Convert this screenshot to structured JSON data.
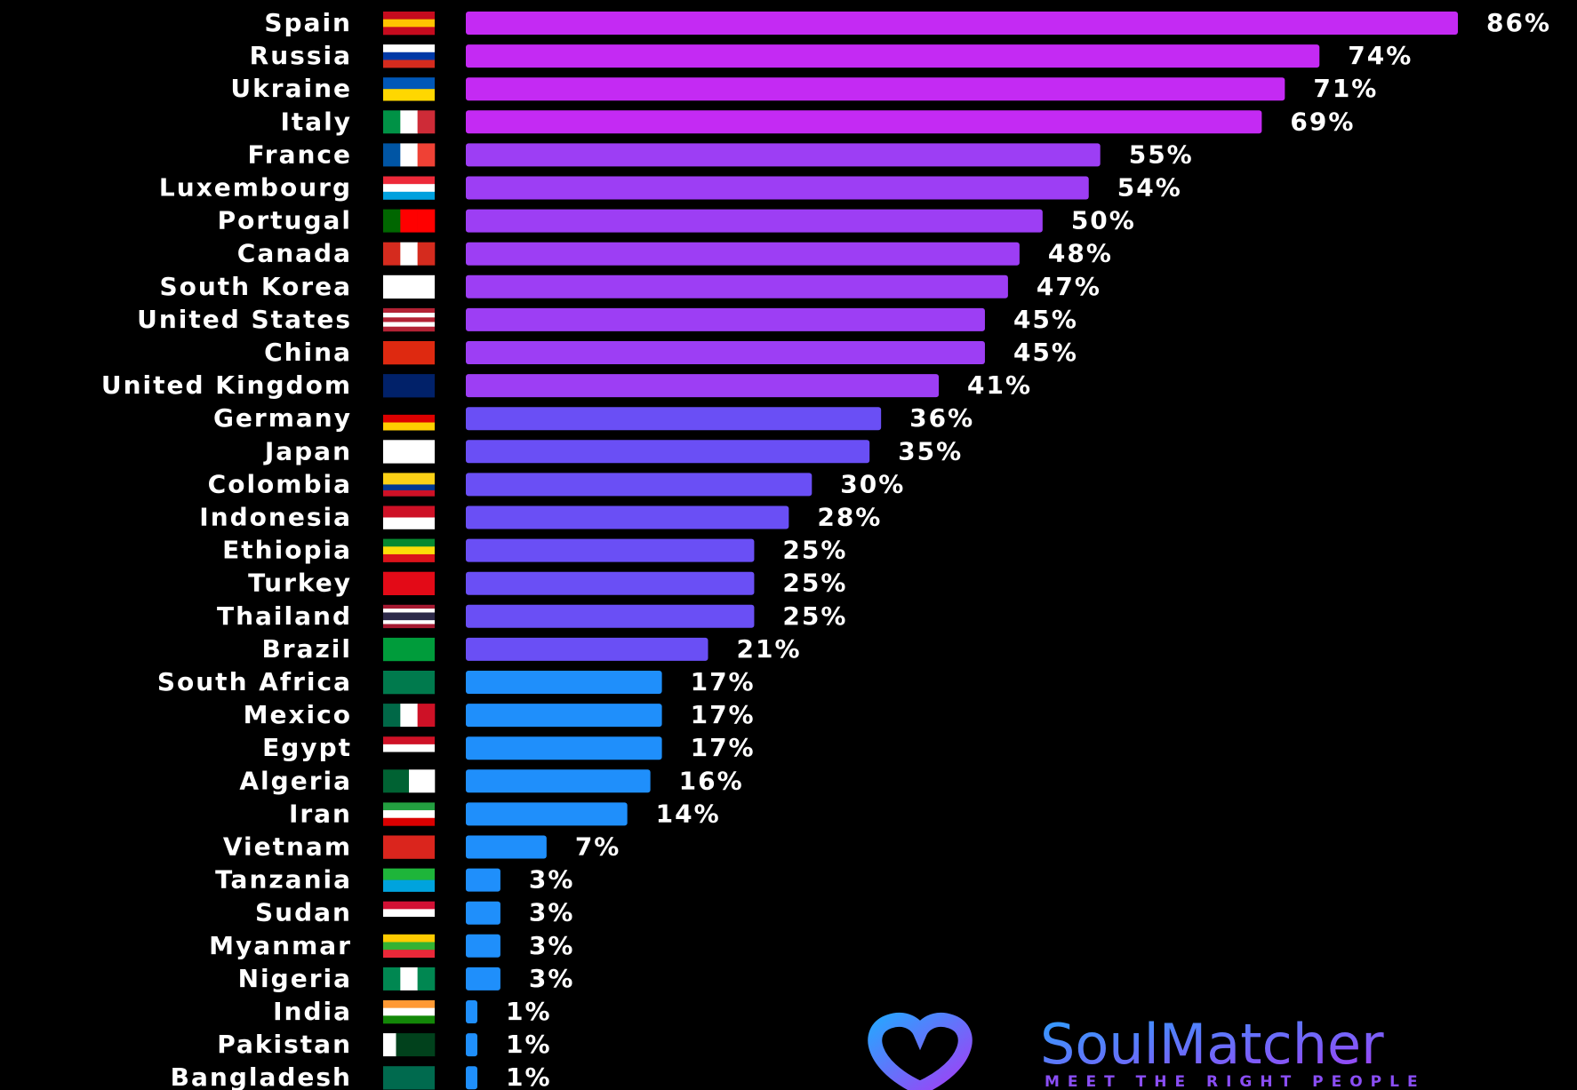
{
  "chart_data": {
    "type": "bar",
    "orientation": "horizontal",
    "categories": [
      "Spain",
      "Russia",
      "Ukraine",
      "Italy",
      "France",
      "Luxembourg",
      "Portugal",
      "Canada",
      "South Korea",
      "United States",
      "China",
      "United Kingdom",
      "Germany",
      "Japan",
      "Colombia",
      "Indonesia",
      "Ethiopia",
      "Turkey",
      "Thailand",
      "Brazil",
      "South Africa",
      "Mexico",
      "Egypt",
      "Algeria",
      "Iran",
      "Vietnam",
      "Tanzania",
      "Sudan",
      "Myanmar",
      "Nigeria",
      "India",
      "Pakistan",
      "Bangladesh"
    ],
    "values": [
      86,
      74,
      71,
      69,
      55,
      54,
      50,
      48,
      47,
      45,
      45,
      41,
      36,
      35,
      30,
      28,
      25,
      25,
      25,
      21,
      17,
      17,
      17,
      16,
      14,
      7,
      3,
      3,
      3,
      3,
      1,
      1,
      1
    ],
    "value_labels": [
      "86%",
      "74%",
      "71%",
      "69%",
      "55%",
      "54%",
      "50%",
      "48%",
      "47%",
      "45%",
      "45%",
      "41%",
      "36%",
      "35%",
      "30%",
      "28%",
      "25%",
      "25%",
      "25%",
      "21%",
      "17%",
      "17%",
      "17%",
      "16%",
      "14%",
      "7%",
      "3%",
      "3%",
      "3%",
      "3%",
      "1%",
      "1%",
      "1%"
    ],
    "colors": [
      "#c42af3",
      "#c42af3",
      "#c42af3",
      "#c42af3",
      "#9d3ef4",
      "#9d3ef4",
      "#9d3ef4",
      "#9d3ef4",
      "#9d3ef4",
      "#9d3ef4",
      "#9d3ef4",
      "#9d3ef4",
      "#6a4ff5",
      "#6a4ff5",
      "#6a4ff5",
      "#6a4ff5",
      "#6a4ff5",
      "#6a4ff5",
      "#6a4ff5",
      "#6a4ff5",
      "#1f8ffb",
      "#1f8ffb",
      "#1f8ffb",
      "#1f8ffb",
      "#1f8ffb",
      "#1f8ffb",
      "#1f8ffb",
      "#1f8ffb",
      "#1f8ffb",
      "#1f8ffb",
      "#1f8ffb",
      "#1f8ffb",
      "#1f8ffb"
    ]
  },
  "logo": {
    "name": "SoulMatcher",
    "tagline": "MEET THE RIGHT PEOPLE"
  }
}
